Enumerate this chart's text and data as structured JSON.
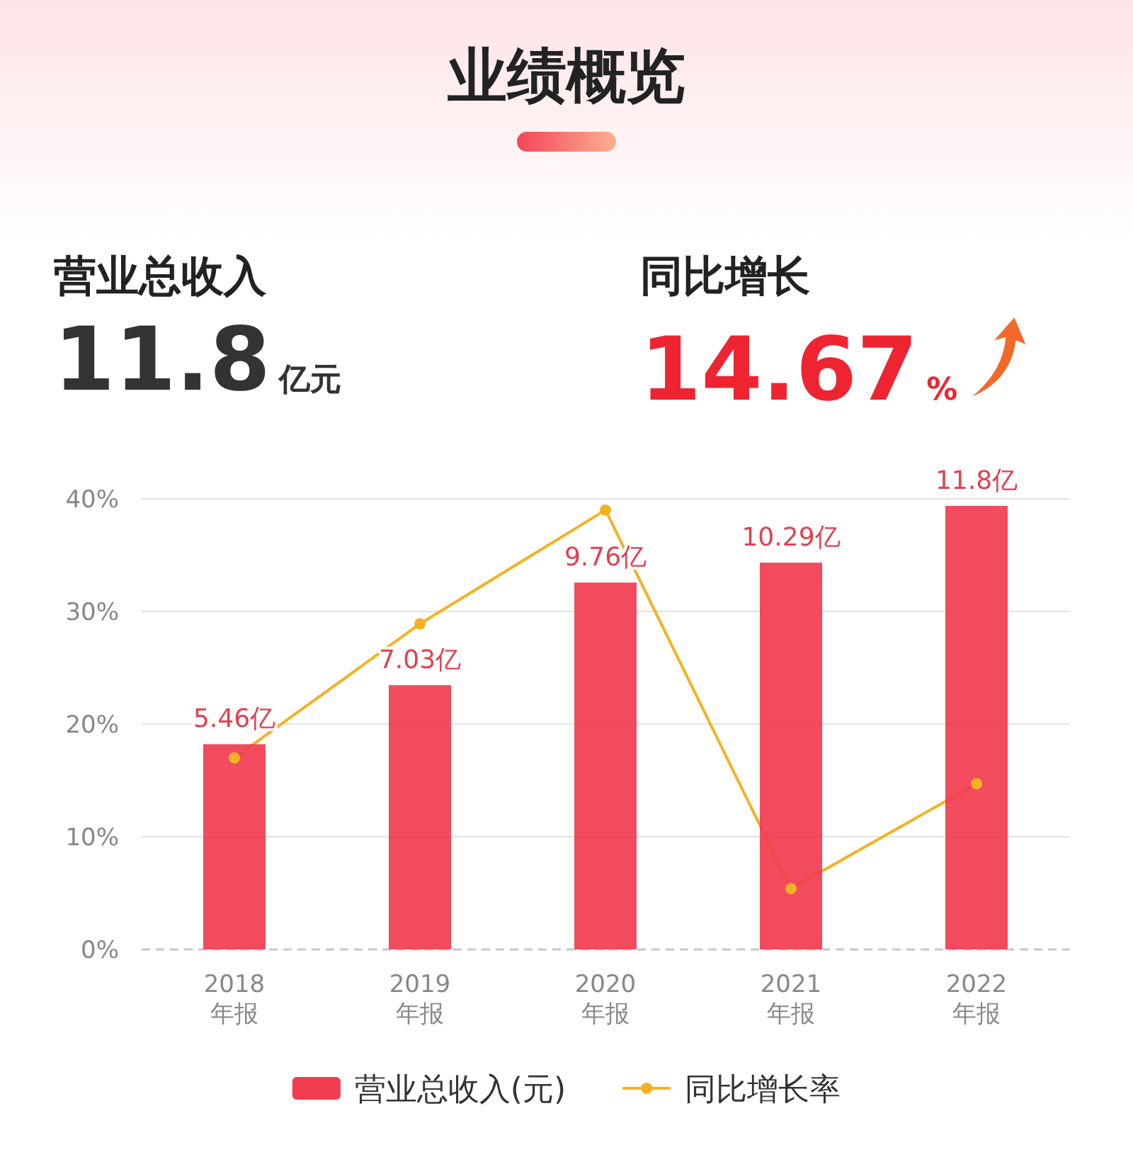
{
  "chart_data": {
    "type": "bar",
    "title": "业绩概览",
    "annotations": [
      "营业总收入",
      "11.8",
      "亿元",
      "同比增长",
      "14.67",
      "%"
    ],
    "categories": [
      "2018\n年报",
      "2019\n年报",
      "2020\n年报",
      "2021\n年报",
      "2022\n年报"
    ],
    "series": [
      {
        "name": "营业总收入(元)",
        "axis": "y2",
        "color": "#f23c50",
        "values": [
          5.46,
          7.03,
          9.76,
          10.29,
          11.8
        ],
        "value_labels": [
          "5.46亿",
          "7.03亿",
          "9.76亿",
          "10.29亿",
          "11.8亿"
        ]
      },
      {
        "name": "同比增长率",
        "type": "line",
        "color": "#f4b223",
        "values": [
          17.0,
          28.9,
          39.0,
          5.4,
          14.7
        ]
      }
    ],
    "ylim": [
      0,
      40
    ],
    "yticks": [
      {
        "value": 0,
        "label": "0%"
      },
      {
        "value": 10,
        "label": "10%"
      },
      {
        "value": 20,
        "label": "20%"
      },
      {
        "value": 30,
        "label": "30%"
      },
      {
        "value": 40,
        "label": "40%"
      }
    ],
    "grid": "y",
    "legend": "bottom",
    "marker": "circle",
    "line_style": "solid"
  }
}
